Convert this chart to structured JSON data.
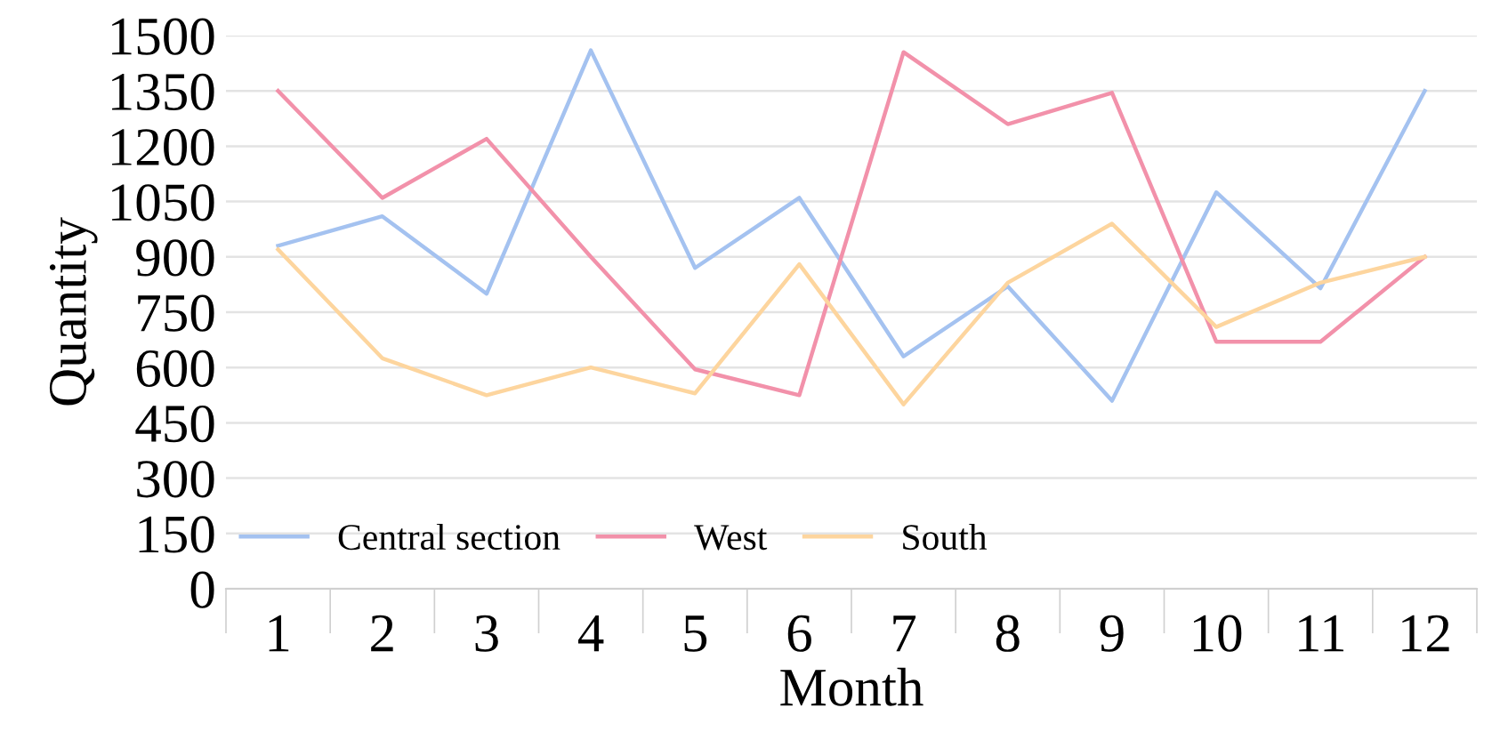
{
  "chart_data": {
    "type": "line",
    "xlabel": "Month",
    "ylabel": "Quantity",
    "categories": [
      "1",
      "2",
      "3",
      "4",
      "5",
      "6",
      "7",
      "8",
      "9",
      "10",
      "11",
      "12"
    ],
    "series": [
      {
        "name": "Central section",
        "color": "#a4c2f0",
        "values": [
          930,
          1010,
          800,
          1460,
          870,
          1060,
          630,
          820,
          510,
          1075,
          815,
          1350
        ]
      },
      {
        "name": "West",
        "color": "#f291aa",
        "values": [
          1350,
          1060,
          1220,
          900,
          595,
          525,
          1455,
          1260,
          1345,
          670,
          670,
          900
        ]
      },
      {
        "name": "South",
        "color": "#fdd59e",
        "values": [
          920,
          625,
          525,
          600,
          530,
          880,
          500,
          830,
          990,
          710,
          830,
          900
        ]
      }
    ],
    "ylim": [
      0,
      1500
    ],
    "yticks": [
      0,
      150,
      300,
      450,
      600,
      750,
      900,
      1050,
      1200,
      1350,
      1500
    ],
    "grid": "y",
    "legend": "bottom left",
    "marker": "none",
    "line_style": "solid"
  }
}
